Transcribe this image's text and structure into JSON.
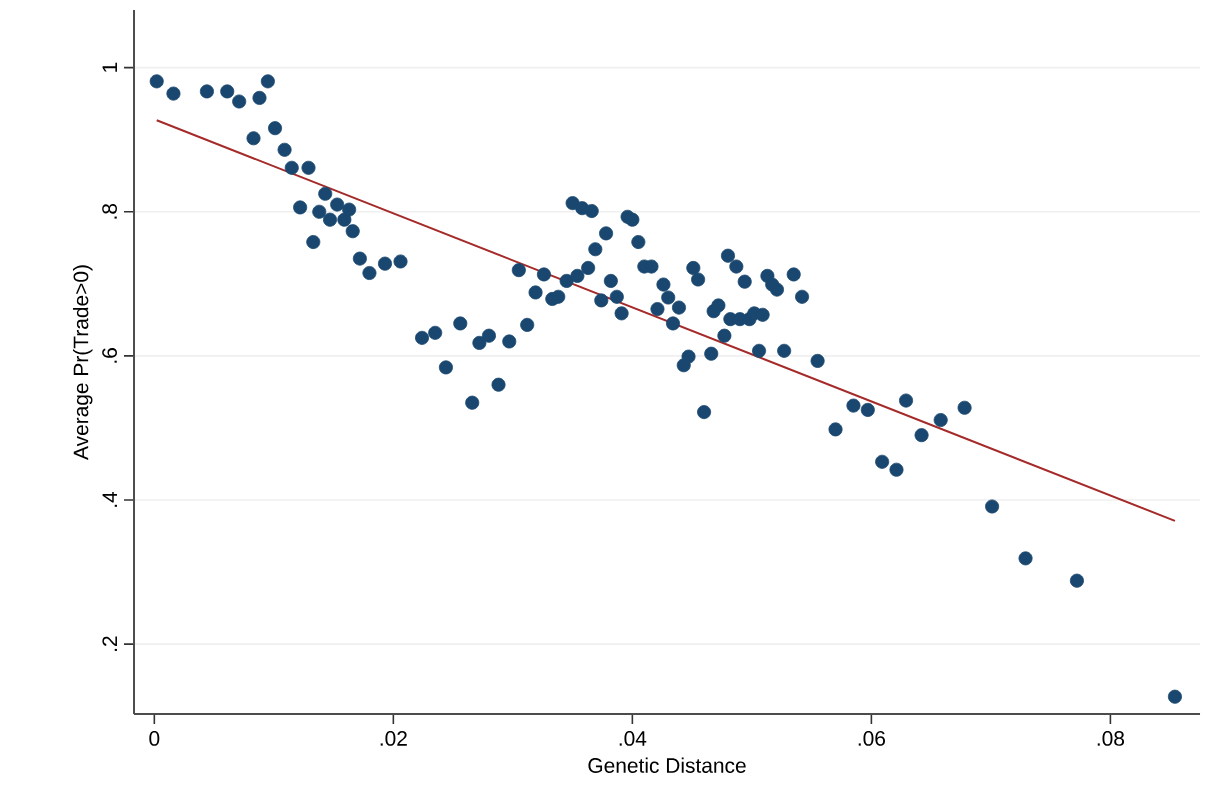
{
  "chart_data": {
    "type": "scatter",
    "xlabel": "Genetic Distance",
    "ylabel": "Average Pr(Trade>0)",
    "xlim": [
      -0.0017,
      0.0875
    ],
    "ylim": [
      0.103,
      1.08
    ],
    "xticks": [
      0,
      {
        "value": 0.02,
        "label": ".02"
      },
      {
        "value": 0.04,
        "label": ".04"
      },
      {
        "value": 0.06,
        "label": ".06"
      },
      {
        "value": 0.08,
        "label": ".08"
      }
    ],
    "yticks": [
      {
        "value": 0.2,
        "label": ".2"
      },
      {
        "value": 0.4,
        "label": ".4"
      },
      {
        "value": 0.6,
        "label": ".6"
      },
      {
        "value": 0.8,
        "label": ".8"
      },
      1
    ],
    "grid": "y",
    "series": [
      {
        "color": "#1a476f",
        "marker": "circle",
        "x": [
          0.0002,
          0.0016,
          0.0044,
          0.0061,
          0.0071,
          0.0088,
          0.0095,
          0.0083,
          0.0101,
          0.0109,
          0.0115,
          0.0129,
          0.0122,
          0.0143,
          0.0133,
          0.0138,
          0.0147,
          0.0153,
          0.0159,
          0.0163,
          0.0166,
          0.0172,
          0.018,
          0.0193,
          0.0206,
          0.0224,
          0.0235,
          0.0256,
          0.0244,
          0.0266,
          0.0272,
          0.028,
          0.0288,
          0.0297,
          0.0305,
          0.0312,
          0.0319,
          0.0326,
          0.0333,
          0.0338,
          0.0345,
          0.035,
          0.0354,
          0.0358,
          0.0363,
          0.0366,
          0.0369,
          0.0374,
          0.0378,
          0.0382,
          0.0387,
          0.0391,
          0.0396,
          0.04,
          0.0405,
          0.041,
          0.0416,
          0.0421,
          0.0426,
          0.043,
          0.0434,
          0.0439,
          0.0443,
          0.0447,
          0.0451,
          0.0455,
          0.046,
          0.0466,
          0.0468,
          0.0472,
          0.0477,
          0.048,
          0.0482,
          0.0487,
          0.049,
          0.0494,
          0.0498,
          0.0502,
          0.0506,
          0.0509,
          0.0513,
          0.0517,
          0.0521,
          0.0527,
          0.0535,
          0.0542,
          0.0555,
          0.057,
          0.0585,
          0.0597,
          0.0609,
          0.0621,
          0.0629,
          0.0642,
          0.0658,
          0.0678,
          0.0701,
          0.0729,
          0.0772,
          0.0854
        ],
        "values": [
          0.981,
          0.964,
          0.967,
          0.967,
          0.953,
          0.958,
          0.981,
          0.902,
          0.916,
          0.886,
          0.861,
          0.861,
          0.806,
          0.825,
          0.758,
          0.8,
          0.789,
          0.81,
          0.789,
          0.803,
          0.773,
          0.735,
          0.715,
          0.728,
          0.731,
          0.625,
          0.632,
          0.645,
          0.584,
          0.535,
          0.618,
          0.628,
          0.56,
          0.62,
          0.719,
          0.643,
          0.688,
          0.713,
          0.679,
          0.682,
          0.704,
          0.812,
          0.711,
          0.805,
          0.722,
          0.801,
          0.748,
          0.677,
          0.77,
          0.704,
          0.682,
          0.659,
          0.793,
          0.789,
          0.758,
          0.724,
          0.724,
          0.665,
          0.699,
          0.681,
          0.645,
          0.667,
          0.587,
          0.599,
          0.722,
          0.706,
          0.522,
          0.603,
          0.662,
          0.67,
          0.628,
          0.739,
          0.651,
          0.724,
          0.651,
          0.703,
          0.651,
          0.659,
          0.607,
          0.657,
          0.711,
          0.699,
          0.692,
          0.607,
          0.713,
          0.682,
          0.593,
          0.498,
          0.531,
          0.525,
          0.453,
          0.442,
          0.538,
          0.49,
          0.511,
          0.528,
          0.391,
          0.319,
          0.288,
          0.127
        ]
      },
      {
        "type": "line",
        "color": "#a52a2a",
        "x": [
          0.0002,
          0.0854
        ],
        "values": [
          0.927,
          0.371
        ]
      }
    ]
  }
}
